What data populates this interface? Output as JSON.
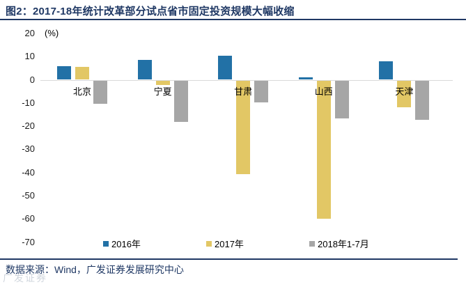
{
  "header": {
    "title": "图2：2017-18年统计改革部分试点省市固定投资规模大幅收缩"
  },
  "footer": {
    "source": "数据来源：Wind，广发证券发展研究中心",
    "watermark": "广发证券"
  },
  "colors": {
    "navy": "#1F3864",
    "bar_2016_blue": "#2271A6",
    "bar_2017_yellow": "#E2C765",
    "bar_2018_gray": "#A6A6A6",
    "zero_line_gray": "#D9D9D9"
  },
  "chart_data": {
    "type": "bar",
    "title": "2017-18年统计改革部分试点省市固定投资规模大幅收缩",
    "unit_label": "(%)",
    "categories": [
      "北京",
      "宁夏",
      "甘肃",
      "山西",
      "天津"
    ],
    "series": [
      {
        "name": "2016年",
        "color": "#2271A6",
        "values": [
          6,
          8.5,
          10.5,
          1,
          8
        ]
      },
      {
        "name": "2017年",
        "color": "#E2C765",
        "values": [
          5.5,
          -2,
          -40.5,
          -59.5,
          -11.5
        ]
      },
      {
        "name": "2018年1-7月",
        "color": "#A6A6A6",
        "values": [
          -10,
          -18,
          -9.5,
          -16.5,
          -17
        ]
      }
    ],
    "ylim": [
      -70,
      20
    ],
    "ytick_step": 10,
    "grid": false,
    "legend_position": "bottom"
  }
}
